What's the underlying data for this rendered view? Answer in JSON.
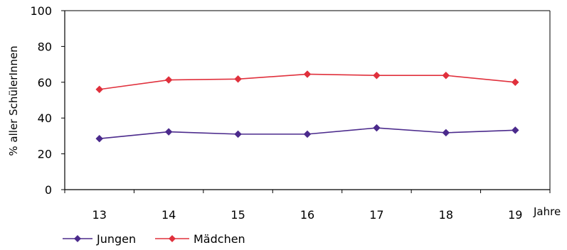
{
  "chart_data": {
    "type": "line",
    "categories": [
      "13",
      "14",
      "15",
      "16",
      "17",
      "18",
      "19"
    ],
    "x_unit_label": "Jahre",
    "ylabel": "% aller SchülerInnen",
    "ylim": [
      0,
      100
    ],
    "yticks": [
      "0",
      "20",
      "40",
      "60",
      "80",
      "100"
    ],
    "grid": false,
    "legend_position": "bottom-left",
    "series": [
      {
        "name": "Jungen",
        "color": "#4b2a8c",
        "marker": "diamond",
        "values": [
          28.5,
          32.3,
          31.0,
          31.0,
          34.5,
          31.8,
          33.2
        ]
      },
      {
        "name": "Mädchen",
        "color": "#e0303c",
        "marker": "diamond",
        "values": [
          56.0,
          61.3,
          61.8,
          64.5,
          63.8,
          63.8,
          60.0
        ]
      }
    ]
  }
}
